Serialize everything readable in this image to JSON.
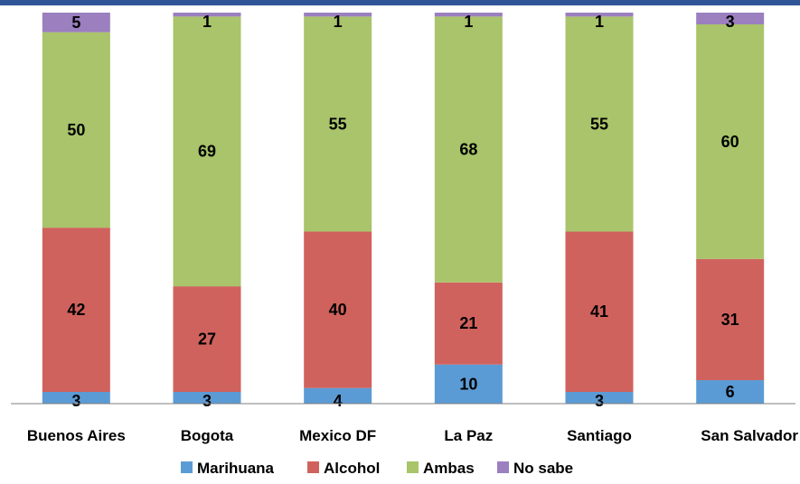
{
  "chart_data": {
    "type": "bar",
    "stacked": true,
    "title": "",
    "xlabel": "",
    "ylabel": "",
    "ylim": [
      0,
      100
    ],
    "grid": false,
    "legend_position": "bottom",
    "categories": [
      "Buenos Aires",
      "Bogota",
      "Mexico DF",
      "La Paz",
      "Santiago",
      "San Salvador"
    ],
    "series": [
      {
        "name": "Marihuana",
        "color": "#5b9bd5",
        "values": [
          3,
          3,
          4,
          10,
          3,
          6
        ]
      },
      {
        "name": "Alcohol",
        "color": "#d0625d",
        "values": [
          42,
          27,
          40,
          21,
          41,
          31
        ]
      },
      {
        "name": "Ambas",
        "color": "#a9c46a",
        "values": [
          50,
          69,
          55,
          68,
          55,
          60
        ]
      },
      {
        "name": "No sabe",
        "color": "#9b7fbf",
        "values": [
          5,
          1,
          1,
          1,
          1,
          3
        ]
      }
    ]
  }
}
